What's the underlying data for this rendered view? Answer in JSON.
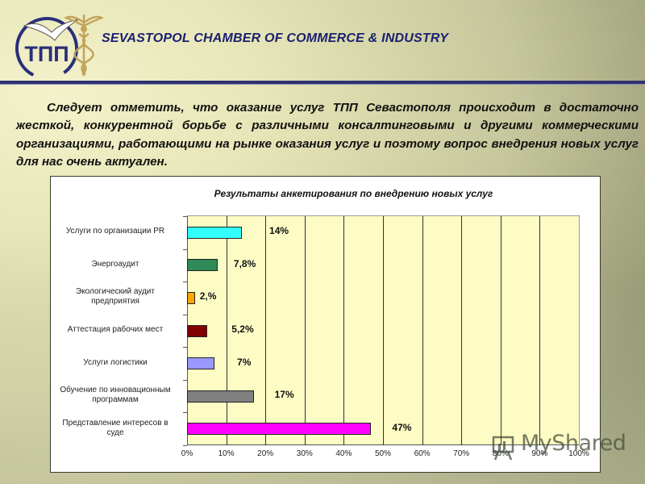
{
  "header": {
    "title": "SEVASTOPOL CHAMBER OF COMMERCE & INDUSTRY",
    "logo_text": "ТПП"
  },
  "intro_text": "Следует отметить, что оказание услуг ТПП Севастополя  происходит в достаточно жесткой, конкурентной борьбе с  различными консалтинговыми и другими коммерческими организациями, работающими на рынке оказания услуг и поэтому вопрос внедрения новых услуг для нас очень актуален.",
  "watermark": "MyShared",
  "chart_data": {
    "type": "bar",
    "orientation": "horizontal",
    "title": "Результаты анкетирования по внедрению новых услуг",
    "xlabel": "",
    "ylabel": "",
    "xlim": [
      0,
      100
    ],
    "grid": true,
    "legend": null,
    "categories": [
      "Услуги по организации PR",
      "Энергоаудит",
      "Экологический аудит предприятия",
      "Аттестация рабочих мест",
      "Услуги  логистики",
      "Обучение по инновационным программам",
      "Представление интересов в суде"
    ],
    "category_lines": [
      [
        "Услуги по организации PR"
      ],
      [
        "Энергоаудит"
      ],
      [
        "Экологический аудит",
        "предприятия"
      ],
      [
        "Аттестация рабочих мест"
      ],
      [
        "Услуги  логистики"
      ],
      [
        "Обучение по инновационным",
        "программам"
      ],
      [
        "Представление интересов в",
        "суде"
      ]
    ],
    "values": [
      14,
      7.8,
      2,
      5.2,
      7,
      17,
      47
    ],
    "value_labels": [
      "14%",
      "7,8%",
      "2,%",
      "5,2%",
      "7%",
      "17%",
      "47%"
    ],
    "colors": [
      "#33ffff",
      "#2e8b57",
      "#ffa500",
      "#800000",
      "#9999ff",
      "#808080",
      "#ff00ff"
    ],
    "x_ticks": [
      "0%",
      "10%",
      "20%",
      "30%",
      "40%",
      "50%",
      "60%",
      "70%",
      "80%",
      "90%",
      "100%"
    ]
  }
}
